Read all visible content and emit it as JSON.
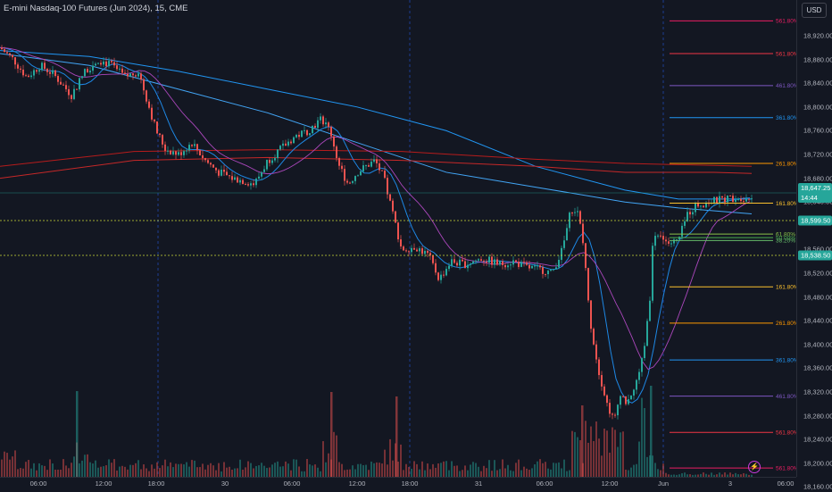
{
  "header": {
    "symbol_title": "E-mini Nasdaq-100 Futures (Jun 2024), 15, CME",
    "currency_button": "USD"
  },
  "price_axis": {
    "ticks": [
      "18,920.00",
      "18,880.00",
      "18,840.00",
      "18,800.00",
      "18,760.00",
      "18,720.00",
      "18,680.00",
      "18,640.00",
      "18,560.00",
      "18,520.00",
      "18,480.00",
      "18,440.00",
      "18,400.00",
      "18,360.00",
      "18,320.00",
      "18,280.00",
      "18,240.00",
      "18,200.00",
      "18,160.00"
    ],
    "tick_values": [
      18920,
      18880,
      18840,
      18800,
      18760,
      18720,
      18680,
      18640,
      18560,
      18520,
      18480,
      18440,
      18400,
      18360,
      18320,
      18280,
      18240,
      18200,
      18160
    ],
    "current_price": "18,647.25",
    "countdown": "14:44",
    "label_1": "18,599.50",
    "label_2": "18,538.50"
  },
  "time_axis": {
    "ticks": [
      "06:00",
      "12:00",
      "18:00",
      "30",
      "06:00",
      "12:00",
      "18:00",
      "31",
      "06:00",
      "12:00",
      "Jun",
      "3",
      "06:00"
    ]
  },
  "fib_levels": [
    {
      "label": "561.80%",
      "price": 18945,
      "color": "#e91e63"
    },
    {
      "label": "561.80%",
      "price": 18890,
      "color": "#f23645"
    },
    {
      "label": "461.80%",
      "price": 18836,
      "color": "#7e57c2"
    },
    {
      "label": "361.80%",
      "price": 18782,
      "color": "#2196f3"
    },
    {
      "label": "261.80%",
      "price": 18705,
      "color": "#ff9800"
    },
    {
      "label": "161.80%",
      "price": 18638,
      "color": "#fbc02d"
    },
    {
      "label": "61.80%",
      "price": 18586,
      "color": "#8bc34a"
    },
    {
      "label": "50.00%",
      "price": 18580,
      "color": "#4caf50"
    },
    {
      "label": "38.20%",
      "price": 18575,
      "color": "#66bb6a"
    },
    {
      "label": "161.80%",
      "price": 18497,
      "color": "#fbc02d"
    },
    {
      "label": "261.80%",
      "price": 18436,
      "color": "#ff9800"
    },
    {
      "label": "361.80%",
      "price": 18374,
      "color": "#2196f3"
    },
    {
      "label": "461.80%",
      "price": 18313,
      "color": "#7e57c2"
    },
    {
      "label": "561.80%",
      "price": 18252,
      "color": "#f23645"
    },
    {
      "label": "561.80%",
      "price": 18192,
      "color": "#e91e63"
    }
  ],
  "colors": {
    "up": "#26a69a",
    "down": "#ef5350",
    "background": "#131722",
    "current_price_bg": "#26a69a",
    "label_green": "#26a69a"
  }
}
